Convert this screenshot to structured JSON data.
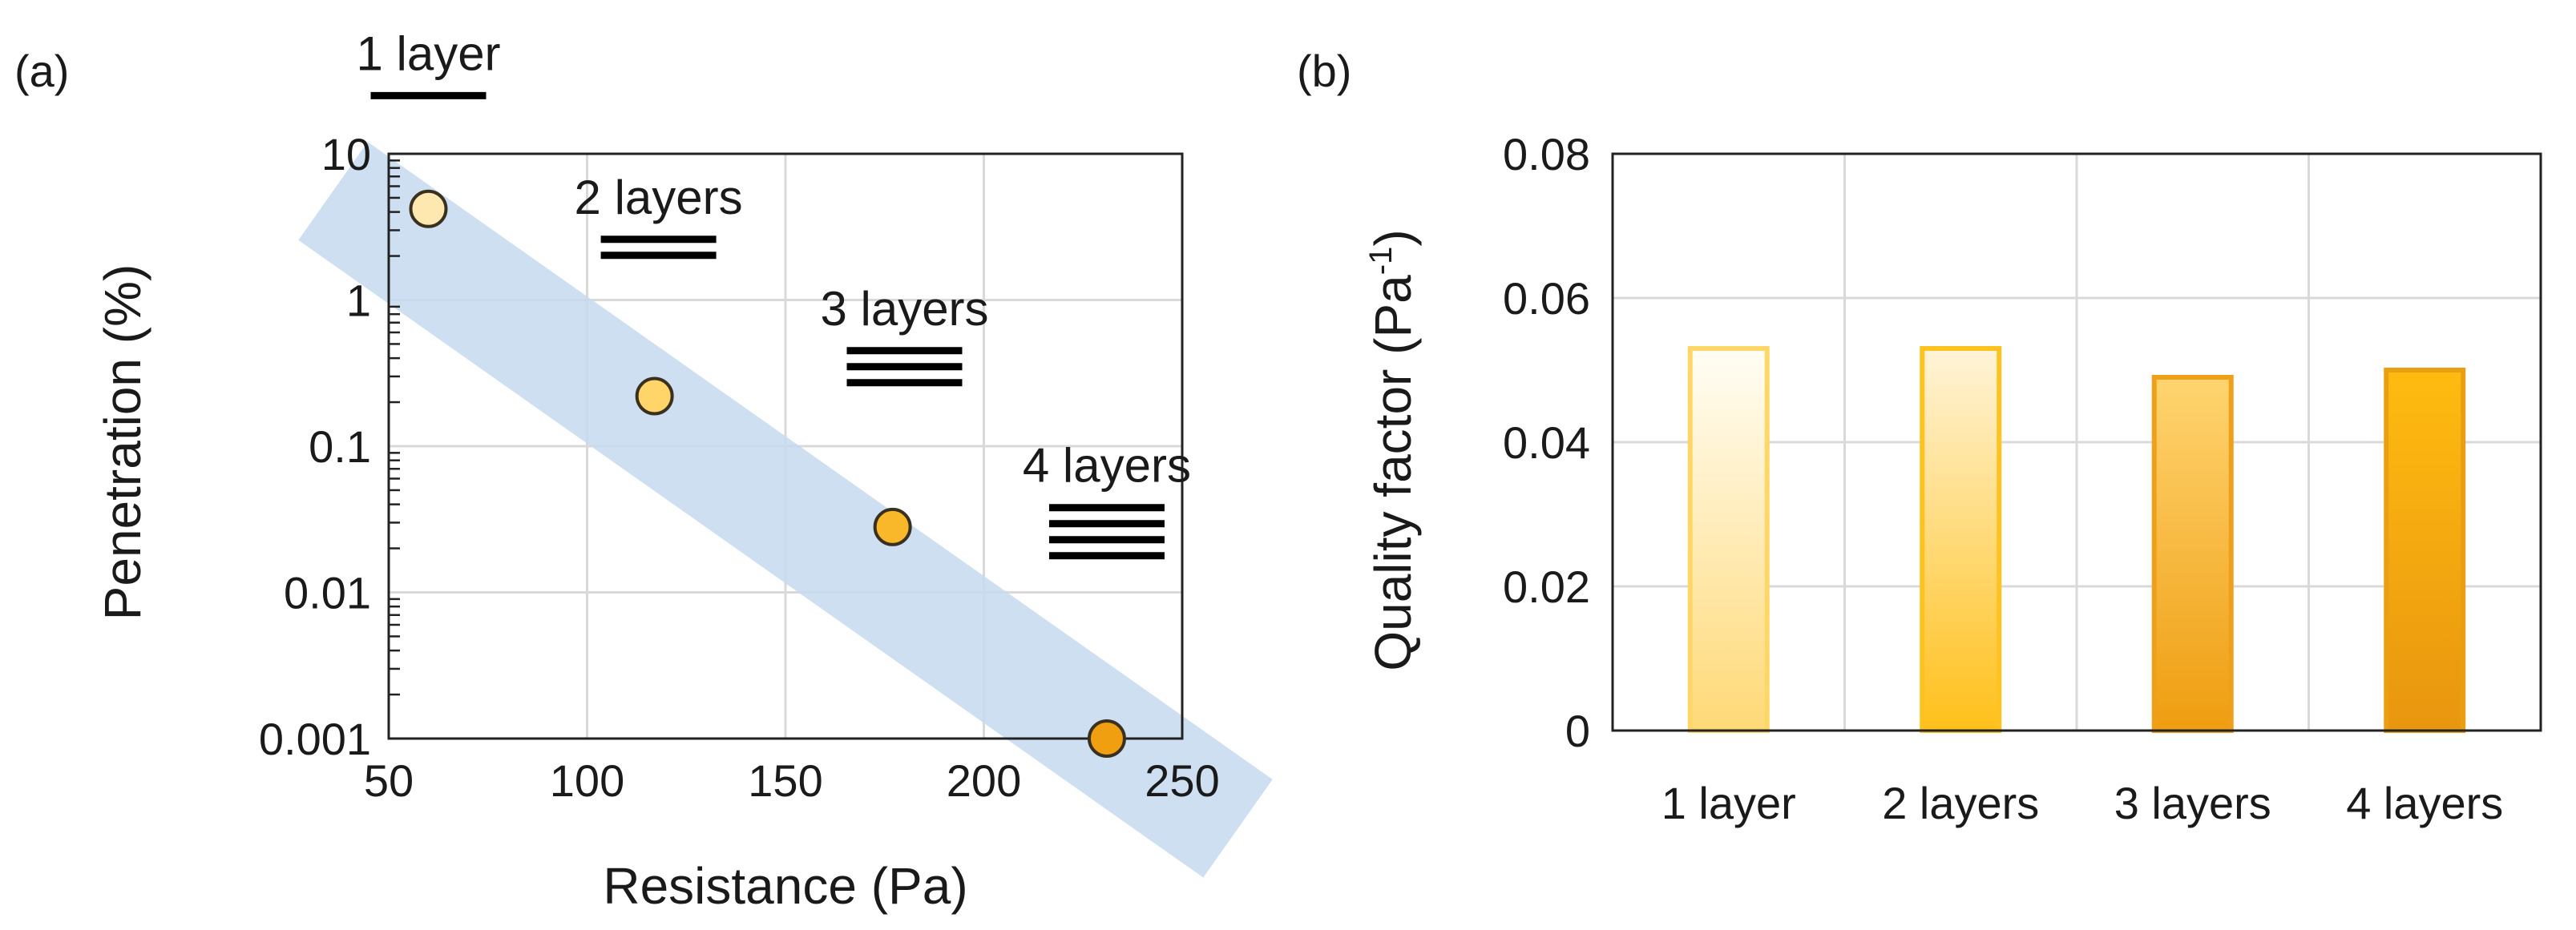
{
  "figure": {
    "colors": {
      "band": "#c5d9ef",
      "grid": "#d9d9d9",
      "axis": "#222222",
      "text": "#1a1a1a",
      "marker_stroke": "#3a3020"
    }
  },
  "chart_data": [
    {
      "id": "a",
      "panel_label": "(a)",
      "type": "scatter",
      "xlabel": "Resistance (Pa)",
      "ylabel": "Penetration (%)",
      "xscale": "linear",
      "yscale": "log",
      "xlim": [
        50,
        250
      ],
      "ylim": [
        0.001,
        10
      ],
      "xticks": [
        50,
        100,
        150,
        200,
        250
      ],
      "yticks": [
        0.001,
        0.01,
        0.1,
        1,
        10
      ],
      "ytick_labels": [
        "0.001",
        "0.01",
        "0.1",
        "1",
        "10"
      ],
      "grid": true,
      "points": [
        {
          "x": 60,
          "y": 4.2,
          "color": "#ffe8b0"
        },
        {
          "x": 117,
          "y": 0.22,
          "color": "#ffd56a"
        },
        {
          "x": 177,
          "y": 0.028,
          "color": "#f9b82a"
        },
        {
          "x": 231,
          "y": 0.001,
          "color": "#ef9f0f"
        }
      ],
      "annotations": [
        {
          "text": "1 layer",
          "lines": 1,
          "x": 60,
          "y": 25
        },
        {
          "text": "2 layers",
          "lines": 2,
          "x": 118,
          "y": 2.6
        },
        {
          "text": "3 layers",
          "lines": 3,
          "x": 180,
          "y": 0.45
        },
        {
          "text": "4 layers",
          "lines": 4,
          "x": 231,
          "y": 0.038
        }
      ],
      "band": {
        "start": [
          50,
          3.0
        ],
        "end": [
          250,
          0.00045
        ]
      }
    },
    {
      "id": "b",
      "panel_label": "(b)",
      "type": "bar",
      "xlabel": "",
      "ylabel_main": "Quality factor (Pa",
      "ylabel_sup": "-1",
      "ylabel_close": ")",
      "categories": [
        "1 layer",
        "2 layers",
        "3 layers",
        "4 layers"
      ],
      "values": [
        0.053,
        0.053,
        0.049,
        0.05
      ],
      "ylim": [
        0,
        0.08
      ],
      "yticks": [
        0,
        0.02,
        0.04,
        0.06,
        0.08
      ],
      "ytick_labels": [
        "0",
        "0.02",
        "0.04",
        "0.06",
        "0.08"
      ],
      "grid": true,
      "bar_styles": [
        {
          "top": "#fffdf5",
          "bottom": "#ffd977",
          "stroke": "#ffd766"
        },
        {
          "top": "#fff4d8",
          "bottom": "#ffc01a",
          "stroke": "#ffc21f"
        },
        {
          "top": "#ffd470",
          "bottom": "#ef9d10",
          "stroke": "#efa01a"
        },
        {
          "top": "#ffbb10",
          "bottom": "#e8960f",
          "stroke": "#e99f14"
        }
      ]
    }
  ]
}
